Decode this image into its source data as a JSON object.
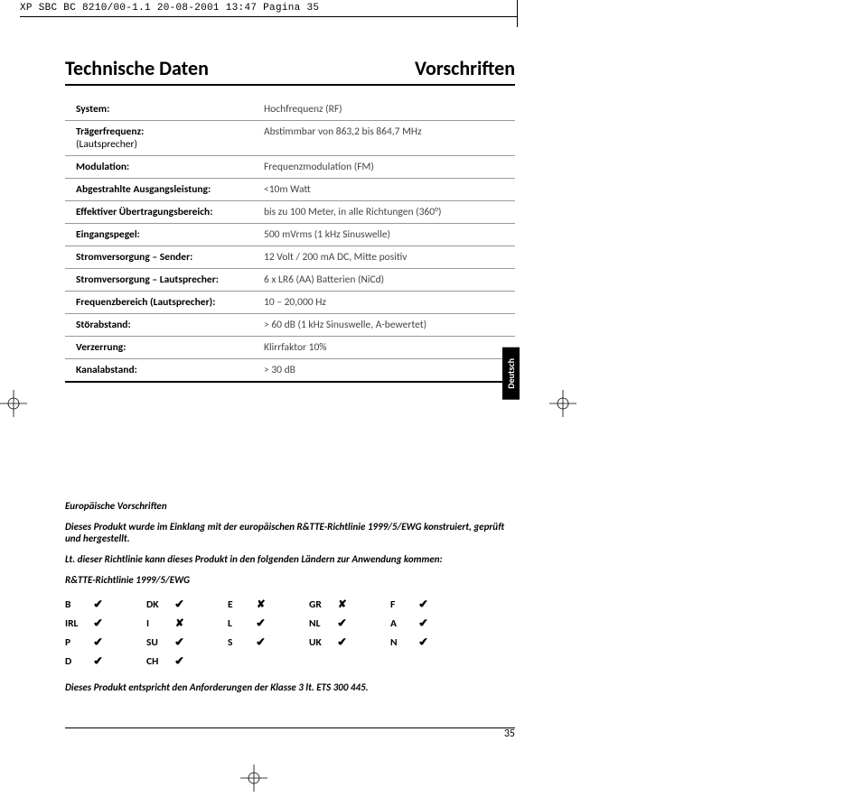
{
  "meta": {
    "header": "XP SBC BC 8210/00-1.1  20-08-2001 13:47  Pagina 35",
    "page_number": "35",
    "lang_tab": "Deutsch"
  },
  "titles": {
    "left": "Technische Daten",
    "right": "Vorschriften"
  },
  "specs": [
    {
      "label": "System:",
      "sub": "",
      "value": "Hochfrequenz (RF)"
    },
    {
      "label": "Trägerfrequenz:",
      "sub": "(Lautsprecher)",
      "value": "Abstimmbar von 863,2 bis 864,7 MHz"
    },
    {
      "label": "Modulation:",
      "sub": "",
      "value": "Frequenzmodulation (FM)"
    },
    {
      "label": "Abgestrahlte Ausgangsleistung:",
      "sub": "",
      "value": "<10m Watt"
    },
    {
      "label": "Effektiver Übertragungsbereich:",
      "sub": "",
      "value": "bis zu 100 Meter, in alle Richtungen (360°)"
    },
    {
      "label": "Eingangspegel:",
      "sub": "",
      "value": "500 mVrms (1 kHz Sinuswelle)"
    },
    {
      "label": "Stromversorgung – Sender:",
      "sub": "",
      "value": "12 Volt / 200 mA DC, Mitte positiv"
    },
    {
      "label": "Stromversorgung – Lautsprecher:",
      "sub": "",
      "value": "6 x LR6 (AA) Batterien (NiCd)"
    },
    {
      "label": "Frequenzbereich (Lautsprecher):",
      "sub": "",
      "value": "10 – 20,000 Hz"
    },
    {
      "label": "Störabstand:",
      "sub": "",
      "value": "> 60 dB (1 kHz Sinuswelle, A-bewertet)"
    },
    {
      "label": "Verzerrung:",
      "sub": "",
      "value": "Klirrfaktor 10%"
    },
    {
      "label": "Kanalabstand:",
      "sub": "",
      "value": "> 30 dB"
    }
  ],
  "regs": {
    "heading": "Europäische Vorschriften",
    "p1": "Dieses Produkt wurde im Einklang mit der europäischen R&TTE-Richtlinie 1999/5/EWG konstruiert, geprüft und hergestellt.",
    "p2": "Lt. dieser Richtlinie kann dieses Produkt in den folgenden Ländern zur Anwendung kommen:",
    "tbl_title": "R&TTE-Richtlinie 1999/5/EWG",
    "rows": [
      [
        {
          "c": "B",
          "m": "✔"
        },
        {
          "c": "DK",
          "m": "✔"
        },
        {
          "c": "E",
          "m": "✘"
        },
        {
          "c": "GR",
          "m": "✘"
        },
        {
          "c": "F",
          "m": "✔"
        }
      ],
      [
        {
          "c": "IRL",
          "m": "✔"
        },
        {
          "c": "I",
          "m": "✘"
        },
        {
          "c": "L",
          "m": "✔"
        },
        {
          "c": "NL",
          "m": "✔"
        },
        {
          "c": "A",
          "m": "✔"
        }
      ],
      [
        {
          "c": "P",
          "m": "✔"
        },
        {
          "c": "SU",
          "m": "✔"
        },
        {
          "c": "S",
          "m": "✔"
        },
        {
          "c": "UK",
          "m": "✔"
        },
        {
          "c": "N",
          "m": "✔"
        }
      ],
      [
        {
          "c": "D",
          "m": "✔"
        },
        {
          "c": "CH",
          "m": "✔"
        },
        {
          "c": "",
          "m": ""
        },
        {
          "c": "",
          "m": ""
        },
        {
          "c": "",
          "m": ""
        }
      ]
    ],
    "footer": "Dieses Produkt entspricht den Anforderungen der Klasse 3 lt. ETS 300 445."
  },
  "marks": {
    "check": "✔",
    "cross": "✘"
  }
}
